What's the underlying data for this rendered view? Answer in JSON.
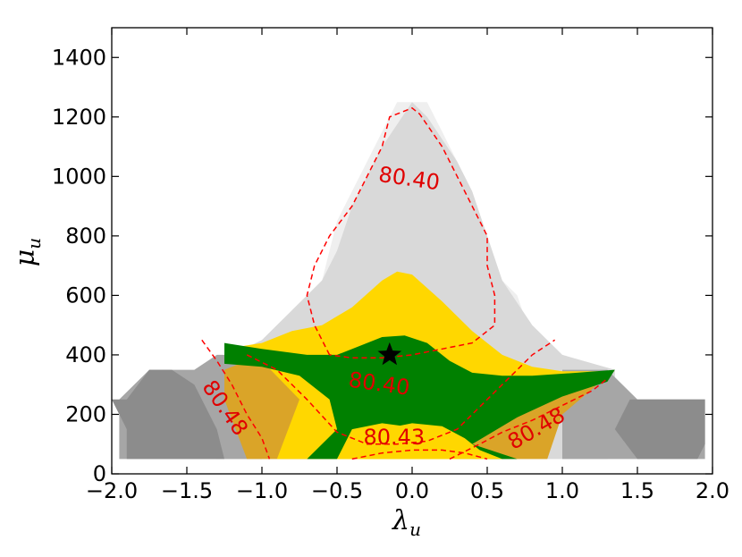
{
  "chart_data": {
    "type": "contour",
    "xlabel": "λ",
    "xlabel_sub": "u",
    "ylabel": "μ",
    "ylabel_sub": "u",
    "xlim": [
      -2.0,
      2.0
    ],
    "ylim": [
      0,
      1500
    ],
    "x_ticks": [
      -2.0,
      -1.5,
      -1.0,
      -0.5,
      0.0,
      0.5,
      1.0,
      1.5,
      2.0
    ],
    "x_tick_labels": [
      "−2.0",
      "−1.5",
      "−1.0",
      "−0.5",
      "0.0",
      "0.5",
      "1.0",
      "1.5",
      "2.0"
    ],
    "y_ticks": [
      0,
      200,
      400,
      600,
      800,
      1000,
      1200,
      1400
    ],
    "y_tick_labels": [
      "0",
      "200",
      "400",
      "600",
      "800",
      "1000",
      "1200",
      "1400"
    ],
    "grid": false,
    "colors": {
      "region_lightest": "#efefef",
      "region_light": "#d9d9d9",
      "region_mid": "#a6a6a6",
      "region_dark": "#8c8c8c",
      "region_gold": "#daa428",
      "region_yellow": "#ffd700",
      "region_green": "#008000",
      "contour_line": "#ff0000"
    },
    "regions": [
      {
        "name": "lightest-gray",
        "color": "#efefef",
        "polygon": [
          [
            -1.0,
            50
          ],
          [
            -1.0,
            250
          ],
          [
            -0.9,
            350
          ],
          [
            -0.8,
            550
          ],
          [
            -0.6,
            650
          ],
          [
            -0.5,
            850
          ],
          [
            -0.3,
            1050
          ],
          [
            -0.2,
            1150
          ],
          [
            -0.1,
            1250
          ],
          [
            0.1,
            1250
          ],
          [
            0.2,
            1150
          ],
          [
            0.3,
            1050
          ],
          [
            0.4,
            900
          ],
          [
            0.5,
            700
          ],
          [
            0.7,
            600
          ],
          [
            0.8,
            450
          ],
          [
            1.0,
            250
          ],
          [
            1.0,
            50
          ]
        ]
      },
      {
        "name": "light-gray",
        "color": "#d9d9d9",
        "polygon": [
          [
            -1.3,
            50
          ],
          [
            -1.35,
            250
          ],
          [
            -1.35,
            350
          ],
          [
            -1.2,
            400
          ],
          [
            -1.0,
            450
          ],
          [
            -0.8,
            550
          ],
          [
            -0.6,
            650
          ],
          [
            -0.5,
            750
          ],
          [
            -0.4,
            900
          ],
          [
            -0.3,
            1000
          ],
          [
            -0.2,
            1100
          ],
          [
            0.0,
            1250
          ],
          [
            0.1,
            1200
          ],
          [
            0.3,
            1050
          ],
          [
            0.4,
            950
          ],
          [
            0.5,
            800
          ],
          [
            0.6,
            650
          ],
          [
            0.8,
            500
          ],
          [
            1.0,
            400
          ],
          [
            1.35,
            350
          ],
          [
            1.35,
            250
          ],
          [
            1.3,
            50
          ]
        ]
      },
      {
        "name": "mid-gray",
        "color": "#a6a6a6",
        "polygon": [
          [
            -1.95,
            50
          ],
          [
            -1.95,
            250
          ],
          [
            -1.75,
            350
          ],
          [
            -1.45,
            350
          ],
          [
            -1.3,
            400
          ],
          [
            -1.0,
            400
          ],
          [
            -1.0,
            50
          ]
        ]
      },
      {
        "name": "mid-gray-right",
        "color": "#a6a6a6",
        "polygon": [
          [
            1.0,
            50
          ],
          [
            1.0,
            350
          ],
          [
            1.3,
            350
          ],
          [
            1.5,
            250
          ],
          [
            1.95,
            250
          ],
          [
            1.95,
            50
          ]
        ]
      },
      {
        "name": "dark-gray-left",
        "color": "#8c8c8c",
        "polygon": [
          [
            -2.0,
            250
          ],
          [
            -1.9,
            250
          ],
          [
            -1.75,
            350
          ],
          [
            -1.6,
            350
          ],
          [
            -1.45,
            300
          ],
          [
            -1.3,
            150
          ],
          [
            -1.25,
            50
          ],
          [
            -1.9,
            50
          ],
          [
            -1.9,
            150
          ]
        ]
      },
      {
        "name": "dark-gray-right",
        "color": "#8c8c8c",
        "polygon": [
          [
            1.5,
            50
          ],
          [
            1.35,
            150
          ],
          [
            1.45,
            250
          ],
          [
            1.6,
            250
          ],
          [
            1.75,
            250
          ],
          [
            1.95,
            250
          ],
          [
            1.95,
            100
          ],
          [
            1.9,
            50
          ]
        ]
      },
      {
        "name": "gold",
        "color": "#daa428",
        "polygon": [
          [
            -1.1,
            50
          ],
          [
            -1.25,
            250
          ],
          [
            -1.25,
            350
          ],
          [
            -1.0,
            400
          ],
          [
            -0.8,
            350
          ],
          [
            -0.6,
            300
          ],
          [
            -0.4,
            200
          ],
          [
            0.2,
            200
          ],
          [
            0.5,
            250
          ],
          [
            0.8,
            300
          ],
          [
            1.1,
            320
          ],
          [
            1.35,
            350
          ],
          [
            1.0,
            200
          ],
          [
            0.9,
            50
          ]
        ]
      },
      {
        "name": "yellow",
        "color": "#ffd700",
        "polygon": [
          [
            -0.9,
            50
          ],
          [
            -0.75,
            250
          ],
          [
            -1.0,
            380
          ],
          [
            -1.25,
            420
          ],
          [
            -1.0,
            440
          ],
          [
            -0.8,
            480
          ],
          [
            -0.6,
            500
          ],
          [
            -0.4,
            560
          ],
          [
            -0.2,
            650
          ],
          [
            -0.1,
            680
          ],
          [
            0.0,
            670
          ],
          [
            0.2,
            580
          ],
          [
            0.4,
            480
          ],
          [
            0.6,
            400
          ],
          [
            0.8,
            360
          ],
          [
            1.0,
            345
          ],
          [
            1.35,
            345
          ],
          [
            1.0,
            300
          ],
          [
            0.6,
            200
          ],
          [
            0.4,
            100
          ],
          [
            0.3,
            50
          ]
        ]
      },
      {
        "name": "green",
        "color": "#008000",
        "polygon": [
          [
            -0.7,
            50
          ],
          [
            -0.5,
            150
          ],
          [
            -0.55,
            250
          ],
          [
            -0.75,
            330
          ],
          [
            -1.0,
            360
          ],
          [
            -1.25,
            370
          ],
          [
            -1.25,
            440
          ],
          [
            -1.0,
            420
          ],
          [
            -0.7,
            400
          ],
          [
            -0.5,
            400
          ],
          [
            -0.35,
            430
          ],
          [
            -0.2,
            460
          ],
          [
            -0.05,
            465
          ],
          [
            0.1,
            440
          ],
          [
            0.25,
            380
          ],
          [
            0.4,
            340
          ],
          [
            0.6,
            330
          ],
          [
            0.8,
            330
          ],
          [
            1.1,
            340
          ],
          [
            1.35,
            350
          ],
          [
            1.3,
            310
          ],
          [
            1.0,
            260
          ],
          [
            0.7,
            190
          ],
          [
            0.5,
            130
          ],
          [
            0.4,
            100
          ],
          [
            0.7,
            50
          ],
          [
            0.5,
            50
          ],
          [
            0.3,
            100
          ],
          [
            0.1,
            150
          ],
          [
            -0.2,
            170
          ],
          [
            -0.4,
            150
          ],
          [
            -0.5,
            50
          ]
        ]
      },
      {
        "name": "yellow-bottom",
        "color": "#ffd700",
        "polygon": [
          [
            -0.5,
            50
          ],
          [
            -0.4,
            110
          ],
          [
            -0.2,
            150
          ],
          [
            0.0,
            170
          ],
          [
            0.2,
            160
          ],
          [
            0.35,
            120
          ],
          [
            0.45,
            80
          ],
          [
            0.6,
            50
          ]
        ]
      }
    ],
    "contours": [
      {
        "level": "80.40",
        "points": [
          [
            -0.55,
            400
          ],
          [
            -0.65,
            500
          ],
          [
            -0.7,
            600
          ],
          [
            -0.65,
            700
          ],
          [
            -0.55,
            800
          ],
          [
            -0.4,
            900
          ],
          [
            -0.3,
            1000
          ],
          [
            -0.2,
            1100
          ],
          [
            -0.15,
            1200
          ],
          [
            0.0,
            1230
          ],
          [
            0.05,
            1210
          ],
          [
            0.2,
            1100
          ],
          [
            0.3,
            1000
          ],
          [
            0.4,
            900
          ],
          [
            0.5,
            800
          ],
          [
            0.5,
            700
          ],
          [
            0.55,
            600
          ],
          [
            0.55,
            500
          ],
          [
            0.4,
            440
          ],
          [
            0.2,
            420
          ],
          [
            0.0,
            400
          ],
          [
            -0.2,
            390
          ],
          [
            -0.4,
            390
          ],
          [
            -0.55,
            400
          ]
        ]
      },
      {
        "level": "80.40",
        "points": [
          [
            -1.1,
            400
          ],
          [
            -0.9,
            350
          ],
          [
            -0.7,
            250
          ],
          [
            -0.5,
            140
          ],
          [
            -0.3,
            100
          ],
          [
            -0.1,
            100
          ],
          [
            0.1,
            110
          ],
          [
            0.3,
            150
          ],
          [
            0.5,
            250
          ],
          [
            0.7,
            350
          ],
          [
            0.8,
            400
          ],
          [
            0.95,
            450
          ]
        ]
      },
      {
        "level": "80.43",
        "points": [
          [
            -0.4,
            50
          ],
          [
            -0.2,
            70
          ],
          [
            0.0,
            80
          ],
          [
            0.2,
            80
          ],
          [
            0.35,
            70
          ],
          [
            0.5,
            50
          ]
        ]
      },
      {
        "level": "80.48",
        "points": [
          [
            -1.4,
            450
          ],
          [
            -1.3,
            380
          ],
          [
            -1.2,
            300
          ],
          [
            -1.1,
            200
          ],
          [
            -1.0,
            120
          ],
          [
            -0.95,
            50
          ]
        ]
      },
      {
        "level": "80.48",
        "points": [
          [
            0.25,
            50
          ],
          [
            0.45,
            100
          ],
          [
            0.6,
            140
          ],
          [
            0.8,
            180
          ],
          [
            1.0,
            230
          ],
          [
            1.2,
            280
          ],
          [
            1.3,
            320
          ]
        ]
      }
    ],
    "contour_labels": [
      {
        "text": "80.40",
        "x": -0.02,
        "y": 990,
        "rotate": 8
      },
      {
        "text": "80.40",
        "x": -0.22,
        "y": 300,
        "rotate": 8
      },
      {
        "text": "80.43",
        "x": -0.12,
        "y": 120,
        "rotate": 0
      },
      {
        "text": "80.48",
        "x": -1.25,
        "y": 220,
        "rotate": 55
      },
      {
        "text": "80.48",
        "x": 0.83,
        "y": 150,
        "rotate": -30
      }
    ],
    "marker": {
      "symbol": "star",
      "x": -0.15,
      "y": 400,
      "color": "#000000"
    }
  }
}
